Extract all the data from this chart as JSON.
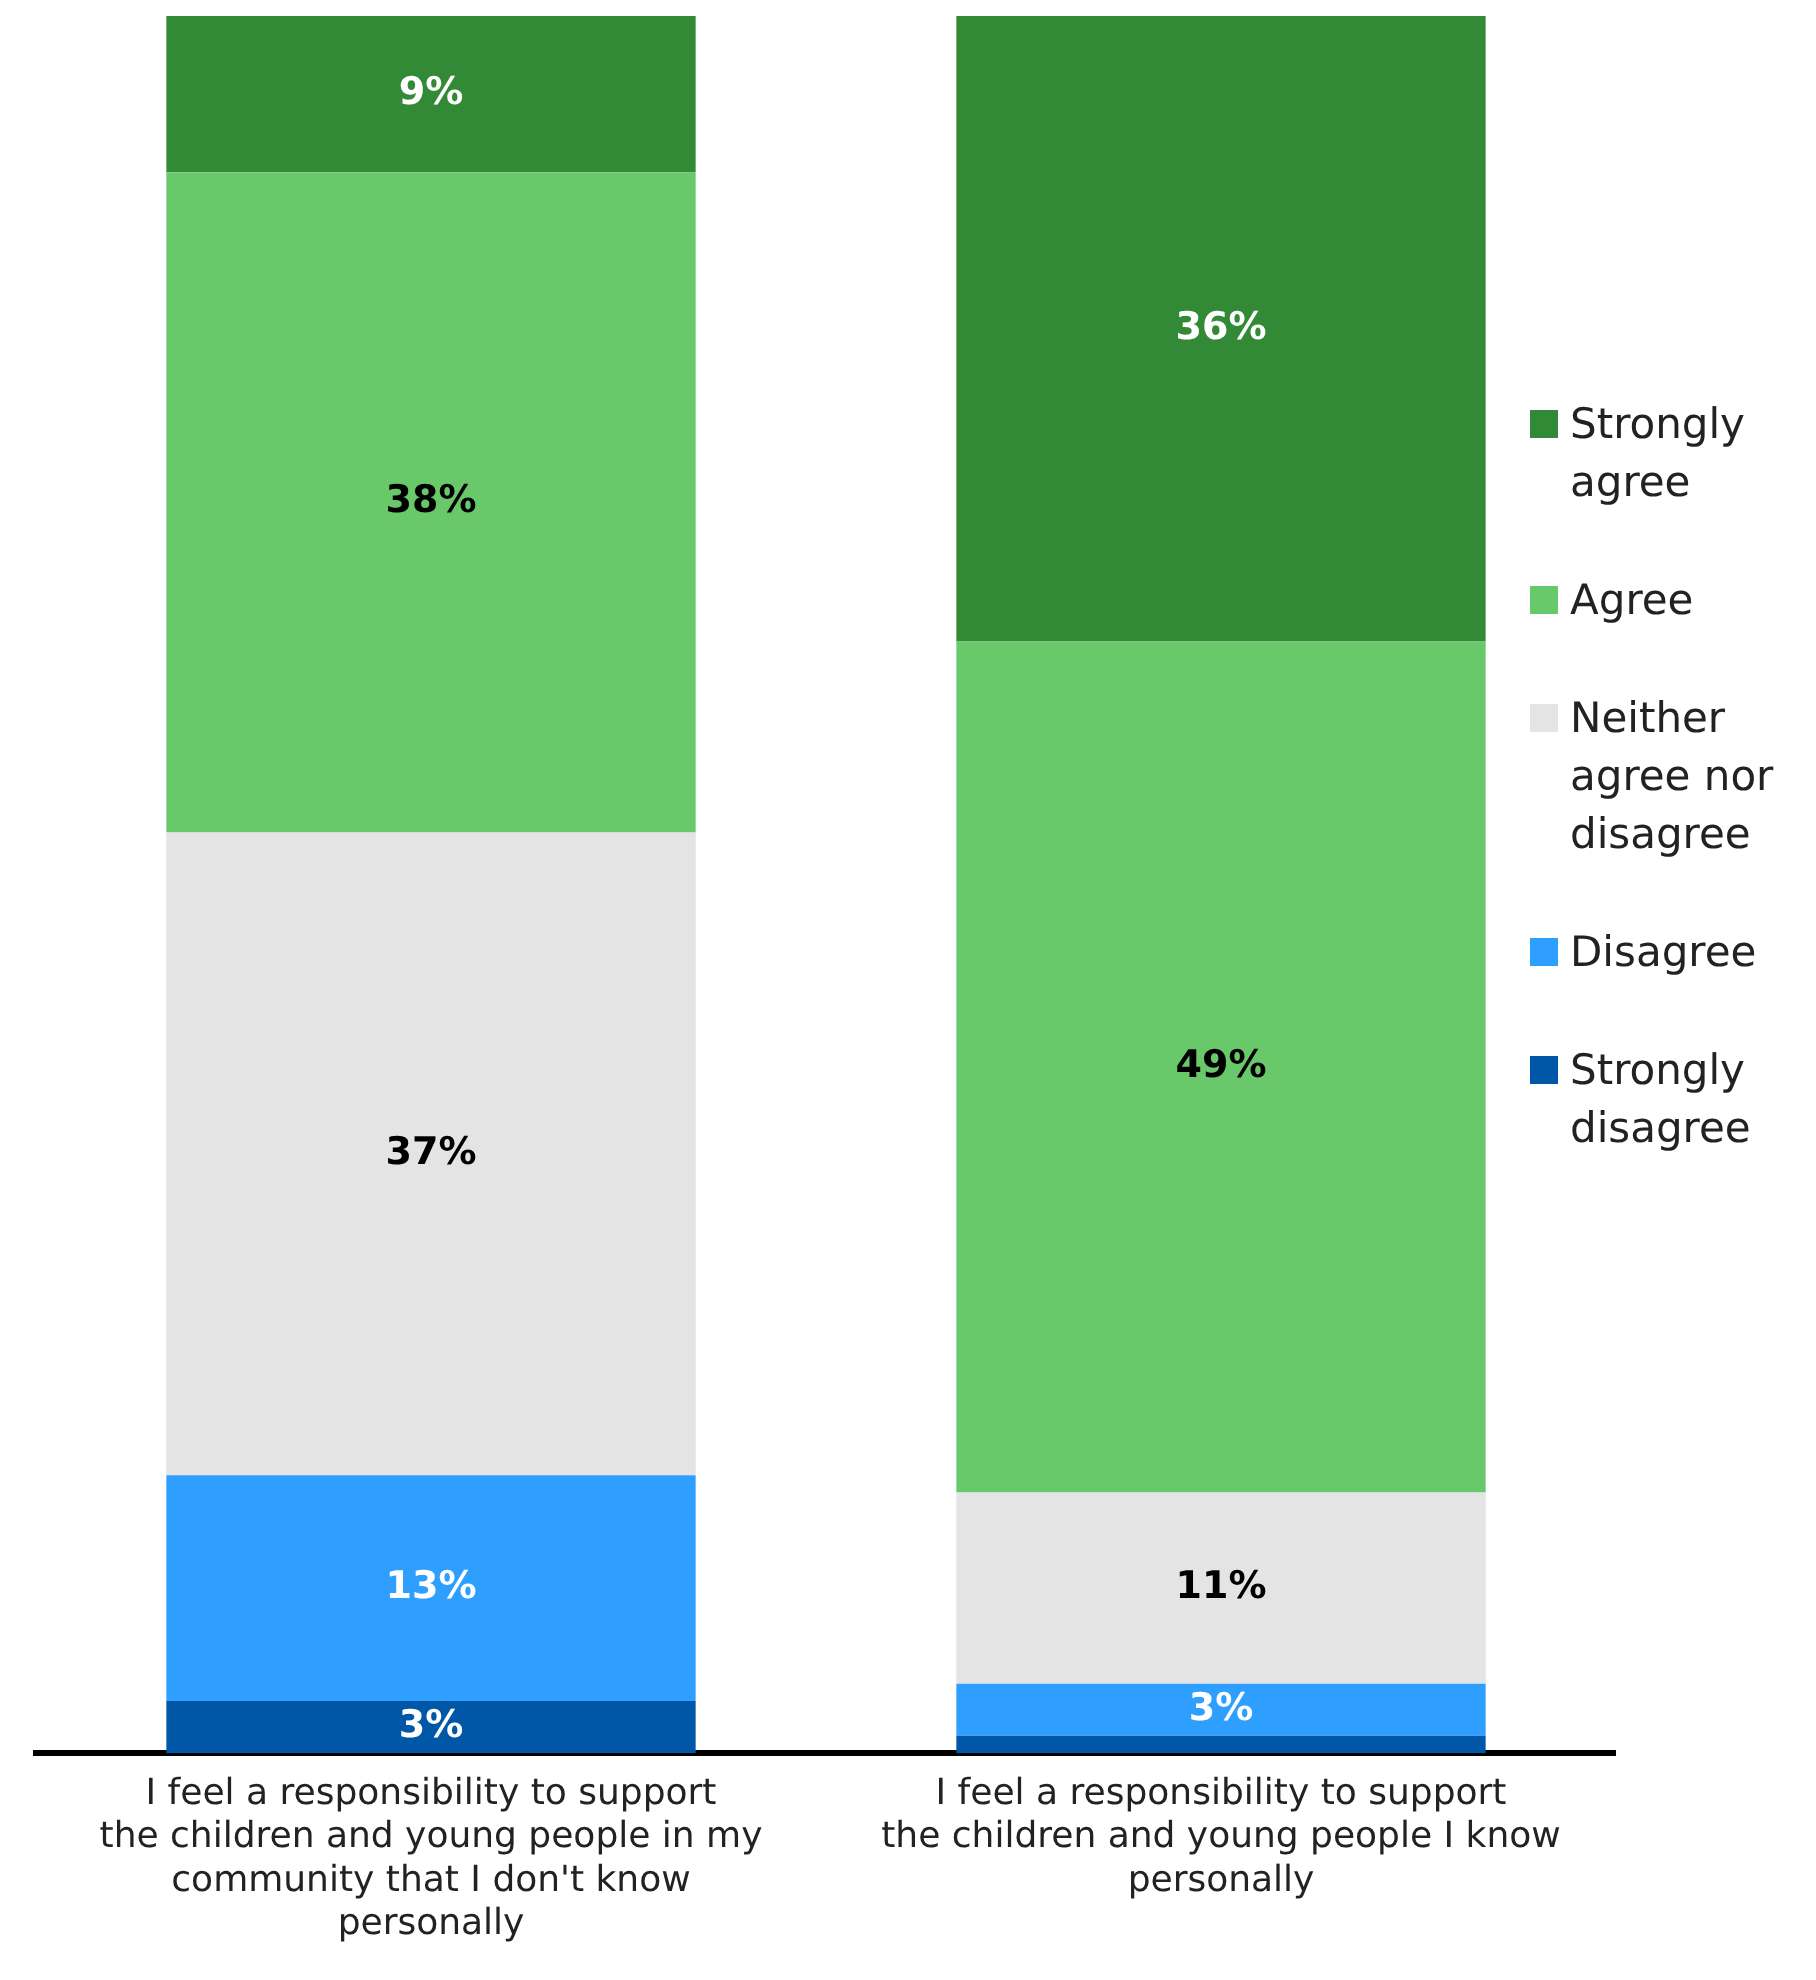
{
  "chart_data": {
    "type": "bar",
    "stacked": true,
    "categories": [
      "I feel a responsibility to support the children and young people in my community that I don't know personally",
      "I feel a responsibility to support the children and young people I know personally"
    ],
    "series": [
      {
        "name": "Strongly disagree",
        "color": "#0057a8",
        "values": [
          3,
          1
        ],
        "value_labels": [
          "3%",
          null
        ]
      },
      {
        "name": "Disagree",
        "color": "#2e9fff",
        "values": [
          13,
          3
        ],
        "value_labels": [
          "13%",
          "3%"
        ]
      },
      {
        "name": "Neither agree nor disagree",
        "color": "#e4e4e4",
        "values": [
          37,
          11
        ],
        "value_labels": [
          "37%",
          "11%"
        ]
      },
      {
        "name": "Agree",
        "color": "#68c86a",
        "values": [
          38,
          49
        ],
        "value_labels": [
          "38%",
          "49%"
        ]
      },
      {
        "name": "Strongly agree",
        "color": "#338a36",
        "values": [
          9,
          36
        ],
        "value_labels": [
          "9%",
          "36%"
        ]
      }
    ],
    "legend": "right",
    "grid": false
  }
}
